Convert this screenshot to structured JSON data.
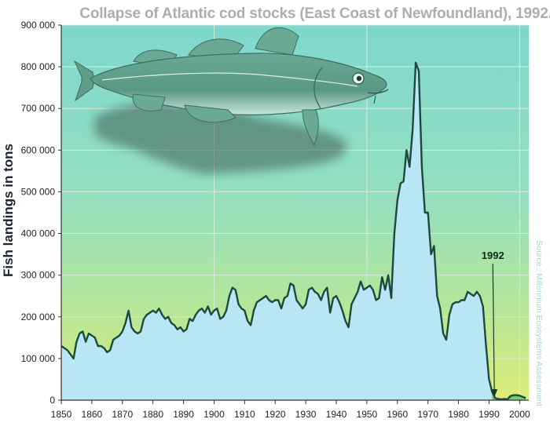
{
  "chart_data": {
    "type": "area",
    "title": "Collapse of Atlantic cod stocks (East Coast of Newfoundland), 1992.",
    "xlabel": "",
    "ylabel": "Fish landings in tons",
    "source": "Source : Millennium Ecosystems Assessment",
    "xlim": [
      1850,
      2003
    ],
    "ylim": [
      0,
      900000
    ],
    "x_ticks": [
      1850,
      1860,
      1870,
      1880,
      1890,
      1900,
      1910,
      1920,
      1930,
      1940,
      1950,
      1960,
      1970,
      1980,
      1990,
      2000
    ],
    "y_ticks": [
      0,
      100000,
      200000,
      300000,
      400000,
      500000,
      600000,
      700000,
      800000,
      900000
    ],
    "y_tick_labels": [
      "0",
      "100 000",
      "200 000",
      "300 000",
      "400 000",
      "500 000",
      "600 000",
      "700 000",
      "800 000",
      "900 000"
    ],
    "grid": true,
    "series": [
      {
        "x": [
          1850,
          1851,
          1852,
          1853,
          1854,
          1855,
          1856,
          1857,
          1858,
          1859,
          1860,
          1861,
          1862,
          1863,
          1864,
          1865,
          1866,
          1867,
          1868,
          1869,
          1870,
          1871,
          1872,
          1873,
          1874,
          1875,
          1876,
          1877,
          1878,
          1879,
          1880,
          1881,
          1882,
          1883,
          1884,
          1885,
          1886,
          1887,
          1888,
          1889,
          1890,
          1891,
          1892,
          1893,
          1894,
          1895,
          1896,
          1897,
          1898,
          1899,
          1900,
          1901,
          1902,
          1903,
          1904,
          1905,
          1906,
          1907,
          1908,
          1909,
          1910,
          1911,
          1912,
          1913,
          1914,
          1915,
          1916,
          1917,
          1918,
          1919,
          1920,
          1921,
          1922,
          1923,
          1924,
          1925,
          1926,
          1927,
          1928,
          1929,
          1930,
          1931,
          1932,
          1933,
          1934,
          1935,
          1936,
          1937,
          1938,
          1939,
          1940,
          1941,
          1942,
          1943,
          1944,
          1945,
          1946,
          1947,
          1948,
          1949,
          1950,
          1951,
          1952,
          1953,
          1954,
          1955,
          1956,
          1957,
          1958,
          1959,
          1960,
          1961,
          1962,
          1963,
          1964,
          1965,
          1966,
          1967,
          1968,
          1969,
          1970,
          1971,
          1972,
          1973,
          1974,
          1975,
          1976,
          1977,
          1978,
          1979,
          1980,
          1981,
          1982,
          1983,
          1984,
          1985,
          1986,
          1987,
          1988,
          1989,
          1990,
          1991,
          1992,
          1993,
          1994,
          1995,
          1996,
          1997,
          1998,
          1999,
          2000,
          2001,
          2002
        ],
        "values": [
          130000,
          125000,
          120000,
          110000,
          100000,
          140000,
          160000,
          165000,
          140000,
          160000,
          155000,
          150000,
          130000,
          130000,
          125000,
          115000,
          120000,
          145000,
          150000,
          155000,
          165000,
          185000,
          215000,
          175000,
          165000,
          160000,
          165000,
          195000,
          205000,
          210000,
          215000,
          210000,
          220000,
          205000,
          195000,
          200000,
          185000,
          180000,
          170000,
          175000,
          165000,
          170000,
          195000,
          190000,
          205000,
          215000,
          220000,
          210000,
          225000,
          205000,
          215000,
          220000,
          195000,
          200000,
          215000,
          250000,
          270000,
          265000,
          230000,
          220000,
          215000,
          190000,
          180000,
          215000,
          235000,
          240000,
          245000,
          250000,
          240000,
          235000,
          240000,
          240000,
          220000,
          245000,
          250000,
          280000,
          275000,
          240000,
          230000,
          220000,
          230000,
          265000,
          270000,
          260000,
          255000,
          240000,
          260000,
          270000,
          210000,
          245000,
          250000,
          235000,
          215000,
          190000,
          175000,
          230000,
          245000,
          260000,
          285000,
          265000,
          270000,
          275000,
          265000,
          240000,
          245000,
          295000,
          265000,
          300000,
          245000,
          400000,
          480000,
          520000,
          525000,
          600000,
          560000,
          650000,
          810000,
          790000,
          560000,
          450000,
          450000,
          350000,
          370000,
          250000,
          220000,
          160000,
          145000,
          205000,
          230000,
          235000,
          235000,
          240000,
          240000,
          260000,
          255000,
          250000,
          260000,
          250000,
          225000,
          130000,
          50000,
          20000,
          5000,
          3000,
          2000,
          3000,
          2000,
          10000,
          12000,
          12000,
          11000,
          8000,
          5000
        ],
        "color": "#b8e6f5"
      }
    ],
    "annotations": [
      {
        "text": "1992",
        "x": 1992,
        "y": 0
      }
    ]
  },
  "colors": {
    "bg_top": "#7fd8cc",
    "bg_mid": "#9ce2b0",
    "bg_bottom": "#d8ec7a",
    "area_fill": "#b8e6f5",
    "area_line": "#1e4a3c",
    "post_collapse_fill": "#78c978",
    "fish_body": "#5d9e88"
  },
  "icons": {
    "fish": "cod-fish-illustration"
  }
}
